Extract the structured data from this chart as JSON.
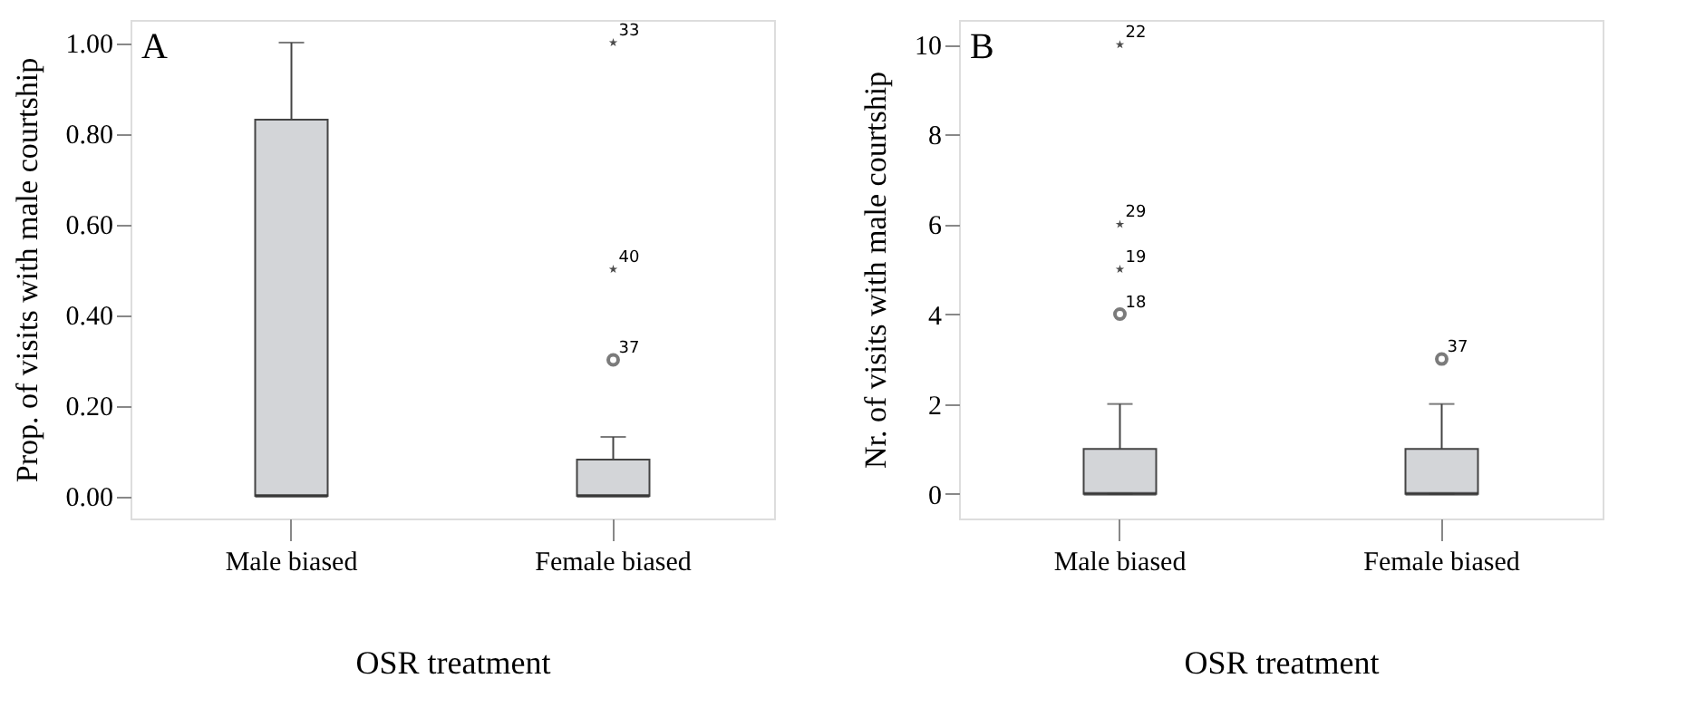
{
  "chart_data": [
    {
      "type": "box",
      "xlabel": "OSR treatment",
      "ylabel": "Prop. of visits with male courtship",
      "categories": [
        "Male biased",
        "Female biased"
      ],
      "ylim": [
        -0.05,
        1.05
      ],
      "yticks": [
        {
          "value": 0,
          "label": "0.00"
        },
        {
          "value": 0.2,
          "label": "0.20"
        },
        {
          "value": 0.4,
          "label": "0.40"
        },
        {
          "value": 0.6,
          "label": "0.60"
        },
        {
          "value": 0.8,
          "label": "0.80"
        },
        {
          "value": 1,
          "label": "1.00"
        }
      ],
      "grid": false,
      "series": [
        {
          "color": "#d3d5d8",
          "boxes": [
            {
              "low": 0,
              "q1": 0,
              "median": 0,
              "q3": 0.83,
              "high": 1.0
            },
            {
              "low": 0,
              "q1": 0,
              "median": 0,
              "q3": 0.08,
              "high": 0.13
            }
          ]
        },
        {
          "type": "scatter",
          "marker": "circle",
          "color": "#444444",
          "x": [
            "Female biased"
          ],
          "values": [
            0.3
          ]
        },
        {
          "type": "scatter",
          "marker": "star",
          "color": "#000000",
          "x": [
            "Female biased",
            "Female biased"
          ],
          "values": [
            1.0,
            0.5
          ]
        }
      ],
      "annotations": [
        "A",
        {
          "text": "33",
          "x": "Female biased",
          "y": 1.0
        },
        {
          "text": "40",
          "x": "Female biased",
          "y": 0.5
        },
        {
          "text": "37",
          "x": "Female biased",
          "y": 0.3
        }
      ]
    },
    {
      "type": "box",
      "xlabel": "OSR treatment",
      "ylabel": "Nr. of visits with male courtship",
      "categories": [
        "Male biased",
        "Female biased"
      ],
      "ylim": [
        -0.55,
        10.55
      ],
      "yticks": [
        0,
        2,
        4,
        6,
        8,
        10
      ],
      "grid": false,
      "series": [
        {
          "color": "#d3d5d8",
          "boxes": [
            {
              "low": 0,
              "q1": 0,
              "median": 0,
              "q3": 1,
              "high": 2
            },
            {
              "low": 0,
              "q1": 0,
              "median": 0,
              "q3": 1,
              "high": 2
            }
          ]
        },
        {
          "type": "scatter",
          "marker": "circle",
          "color": "#444444",
          "x": [
            "Male biased",
            "Female biased"
          ],
          "values": [
            4,
            3
          ]
        },
        {
          "type": "scatter",
          "marker": "star",
          "color": "#000000",
          "x": [
            "Male biased",
            "Male biased",
            "Male biased"
          ],
          "values": [
            10,
            6,
            5
          ]
        }
      ],
      "annotations": [
        "B",
        {
          "text": "22",
          "x": "Male biased",
          "y": 10
        },
        {
          "text": "29",
          "x": "Male biased",
          "y": 6
        },
        {
          "text": "19",
          "x": "Male biased",
          "y": 5
        },
        {
          "text": "18",
          "x": "Male biased",
          "y": 4
        },
        {
          "text": "37",
          "x": "Female biased",
          "y": 3
        }
      ]
    }
  ]
}
